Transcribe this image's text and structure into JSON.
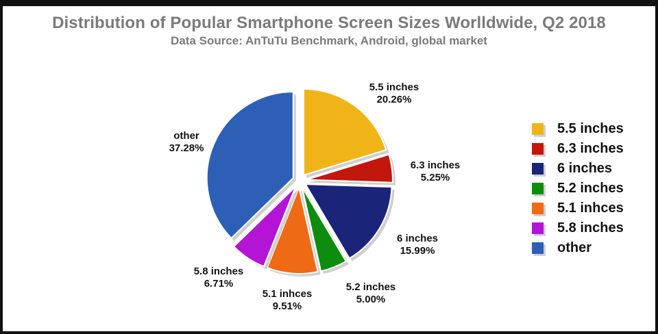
{
  "chart_data": {
    "type": "pie",
    "title": "Distribution of Popular Smartphone Screen Sizes Worlldwide, Q2 2018",
    "subtitle": "Data Source: AnTuTu Benchmark, Android, global market",
    "legend_position": "right",
    "slices": [
      {
        "label": "5.5 inches",
        "value": 20.26,
        "value_label": "20.26%",
        "color": "#f0b418"
      },
      {
        "label": "6.3 inches",
        "value": 5.25,
        "value_label": "5.25%",
        "color": "#c2170c"
      },
      {
        "label": "6 inches",
        "value": 15.99,
        "value_label": "15.99%",
        "color": "#1a2479"
      },
      {
        "label": "5.2 inches",
        "value": 5.0,
        "value_label": "5.00%",
        "color": "#0e8c0e"
      },
      {
        "label": "5.1 inhces",
        "value": 9.51,
        "value_label": "9.51%",
        "color": "#ee6a14"
      },
      {
        "label": "5.8 inches",
        "value": 6.71,
        "value_label": "6.71%",
        "color": "#b314d6"
      },
      {
        "label": "other",
        "value": 37.28,
        "value_label": "37.28%",
        "color": "#2d5fb6"
      }
    ]
  }
}
